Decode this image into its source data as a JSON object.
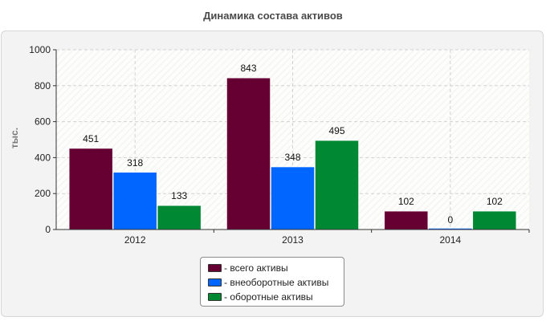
{
  "chart_data": {
    "type": "bar",
    "title": "Динамика состава активов",
    "ylabel": "тыс.",
    "xlabel": "",
    "categories": [
      "2012",
      "2013",
      "2014"
    ],
    "series": [
      {
        "name": "- всего активы",
        "values": [
          451,
          843,
          102
        ],
        "color": "#660033"
      },
      {
        "name": "- внеоборотные активы",
        "values": [
          318,
          348,
          0
        ],
        "color": "#0066ff"
      },
      {
        "name": "- оборотные активы",
        "values": [
          133,
          495,
          102
        ],
        "color": "#008833"
      }
    ],
    "ylim": [
      0,
      1000
    ],
    "yticks": [
      "0",
      "200",
      "400",
      "600",
      "800",
      "1000"
    ],
    "grid": true,
    "legend_position": "bottom-center"
  }
}
